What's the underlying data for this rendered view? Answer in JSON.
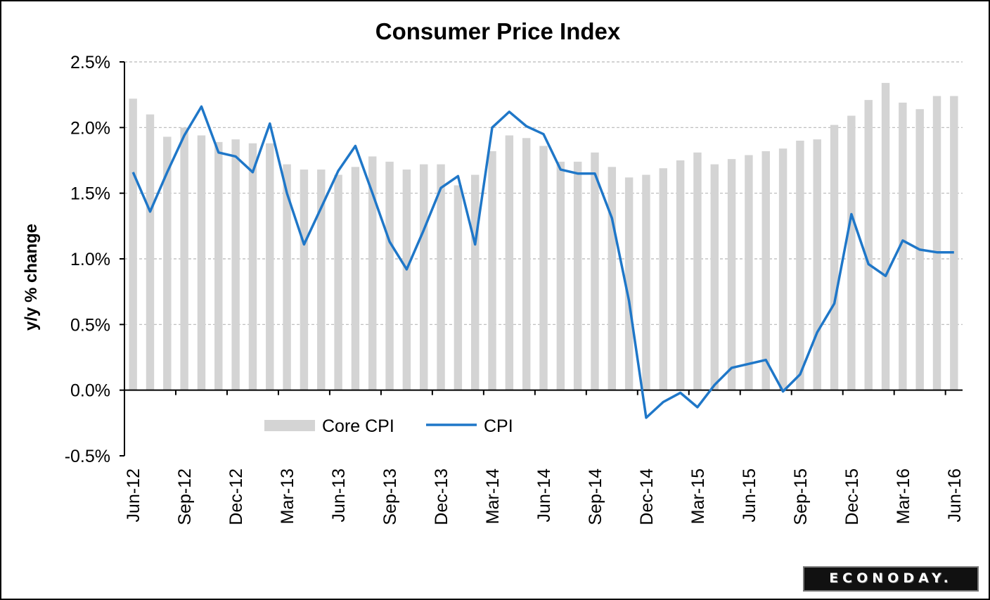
{
  "chart_data": {
    "type": "bar",
    "title": "Consumer Price Index",
    "ylabel": "y/y % change",
    "xlabel": "",
    "ylim": [
      -0.5,
      2.5
    ],
    "ytick_labels": [
      "-0.5%",
      "0.0%",
      "0.5%",
      "1.0%",
      "1.5%",
      "2.0%",
      "2.5%"
    ],
    "ytick_values": [
      -0.5,
      0.0,
      0.5,
      1.0,
      1.5,
      2.0,
      2.5
    ],
    "x_tick_labels": [
      "Jun-12",
      "Sep-12",
      "Dec-12",
      "Mar-13",
      "Jun-13",
      "Sep-13",
      "Dec-13",
      "Mar-14",
      "Jun-14",
      "Sep-14",
      "Dec-14",
      "Mar-15",
      "Jun-15",
      "Sep-15",
      "Dec-15",
      "Mar-16",
      "Jun-16"
    ],
    "categories": [
      "Jun-12",
      "Jul-12",
      "Aug-12",
      "Sep-12",
      "Oct-12",
      "Nov-12",
      "Dec-12",
      "Jan-13",
      "Feb-13",
      "Mar-13",
      "Apr-13",
      "May-13",
      "Jun-13",
      "Jul-13",
      "Aug-13",
      "Sep-13",
      "Oct-13",
      "Nov-13",
      "Dec-13",
      "Jan-14",
      "Feb-14",
      "Mar-14",
      "Apr-14",
      "May-14",
      "Jun-14",
      "Jul-14",
      "Aug-14",
      "Sep-14",
      "Oct-14",
      "Nov-14",
      "Dec-14",
      "Jan-15",
      "Feb-15",
      "Mar-15",
      "Apr-15",
      "May-15",
      "Jun-15",
      "Jul-15",
      "Aug-15",
      "Sep-15",
      "Oct-15",
      "Nov-15",
      "Dec-15",
      "Jan-16",
      "Feb-16",
      "Mar-16",
      "Apr-16",
      "May-16",
      "Jun-16"
    ],
    "grid": true,
    "legend_position": "bottom-left",
    "series": [
      {
        "name": "Core CPI",
        "type": "bar",
        "color": "#d4d4d4",
        "values": [
          2.22,
          2.1,
          1.93,
          2.0,
          1.94,
          1.89,
          1.91,
          1.88,
          1.88,
          1.72,
          1.68,
          1.68,
          1.64,
          1.7,
          1.78,
          1.74,
          1.68,
          1.72,
          1.72,
          1.56,
          1.64,
          1.82,
          1.94,
          1.92,
          1.86,
          1.74,
          1.74,
          1.81,
          1.7,
          1.62,
          1.64,
          1.69,
          1.75,
          1.81,
          1.72,
          1.76,
          1.79,
          1.82,
          1.84,
          1.9,
          1.91,
          2.02,
          2.09,
          2.21,
          2.34,
          2.19,
          2.14,
          2.24,
          2.24
        ]
      },
      {
        "name": "CPI",
        "type": "line",
        "color": "#1f77c8",
        "values": [
          1.66,
          1.36,
          1.66,
          1.94,
          2.16,
          1.81,
          1.78,
          1.66,
          2.03,
          1.5,
          1.11,
          1.39,
          1.67,
          1.86,
          1.5,
          1.13,
          0.92,
          1.22,
          1.54,
          1.63,
          1.11,
          2.0,
          2.12,
          2.01,
          1.95,
          1.68,
          1.65,
          1.65,
          1.31,
          0.68,
          -0.21,
          -0.09,
          -0.02,
          -0.13,
          0.04,
          0.17,
          0.2,
          0.23,
          -0.01,
          0.12,
          0.44,
          0.66,
          1.34,
          0.96,
          0.87,
          1.14,
          1.07,
          1.05,
          1.05
        ]
      }
    ]
  },
  "logo_text": "ECONODAY."
}
